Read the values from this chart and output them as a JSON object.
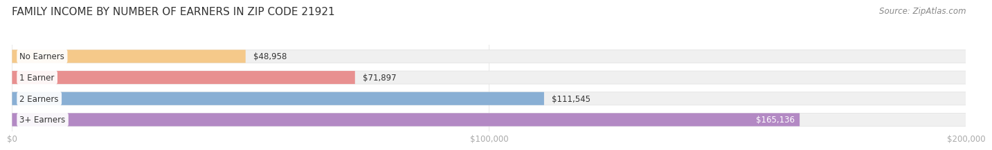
{
  "title": "FAMILY INCOME BY NUMBER OF EARNERS IN ZIP CODE 21921",
  "source": "Source: ZipAtlas.com",
  "categories": [
    "No Earners",
    "1 Earner",
    "2 Earners",
    "3+ Earners"
  ],
  "values": [
    48958,
    71897,
    111545,
    165136
  ],
  "labels": [
    "$48,958",
    "$71,897",
    "$111,545",
    "$165,136"
  ],
  "label_colors": [
    "#333333",
    "#333333",
    "#333333",
    "#ffffff"
  ],
  "bar_colors": [
    "#f5c98a",
    "#e89090",
    "#89afd4",
    "#b389c4"
  ],
  "bar_track_color": "#f0f0f0",
  "bar_track_edge_color": "#e0e0e0",
  "xlim": [
    0,
    200000
  ],
  "xtick_labels": [
    "$0",
    "$100,000",
    "$200,000"
  ],
  "background_color": "#ffffff",
  "title_fontsize": 11,
  "source_fontsize": 8.5,
  "value_label_fontsize": 8.5,
  "cat_label_fontsize": 8.5,
  "bar_height": 0.62,
  "title_color": "#333333",
  "source_color": "#888888",
  "tick_color": "#aaaaaa",
  "tick_fontsize": 8.5,
  "cat_label_color": "#333333",
  "grid_color": "#e8e8e8"
}
